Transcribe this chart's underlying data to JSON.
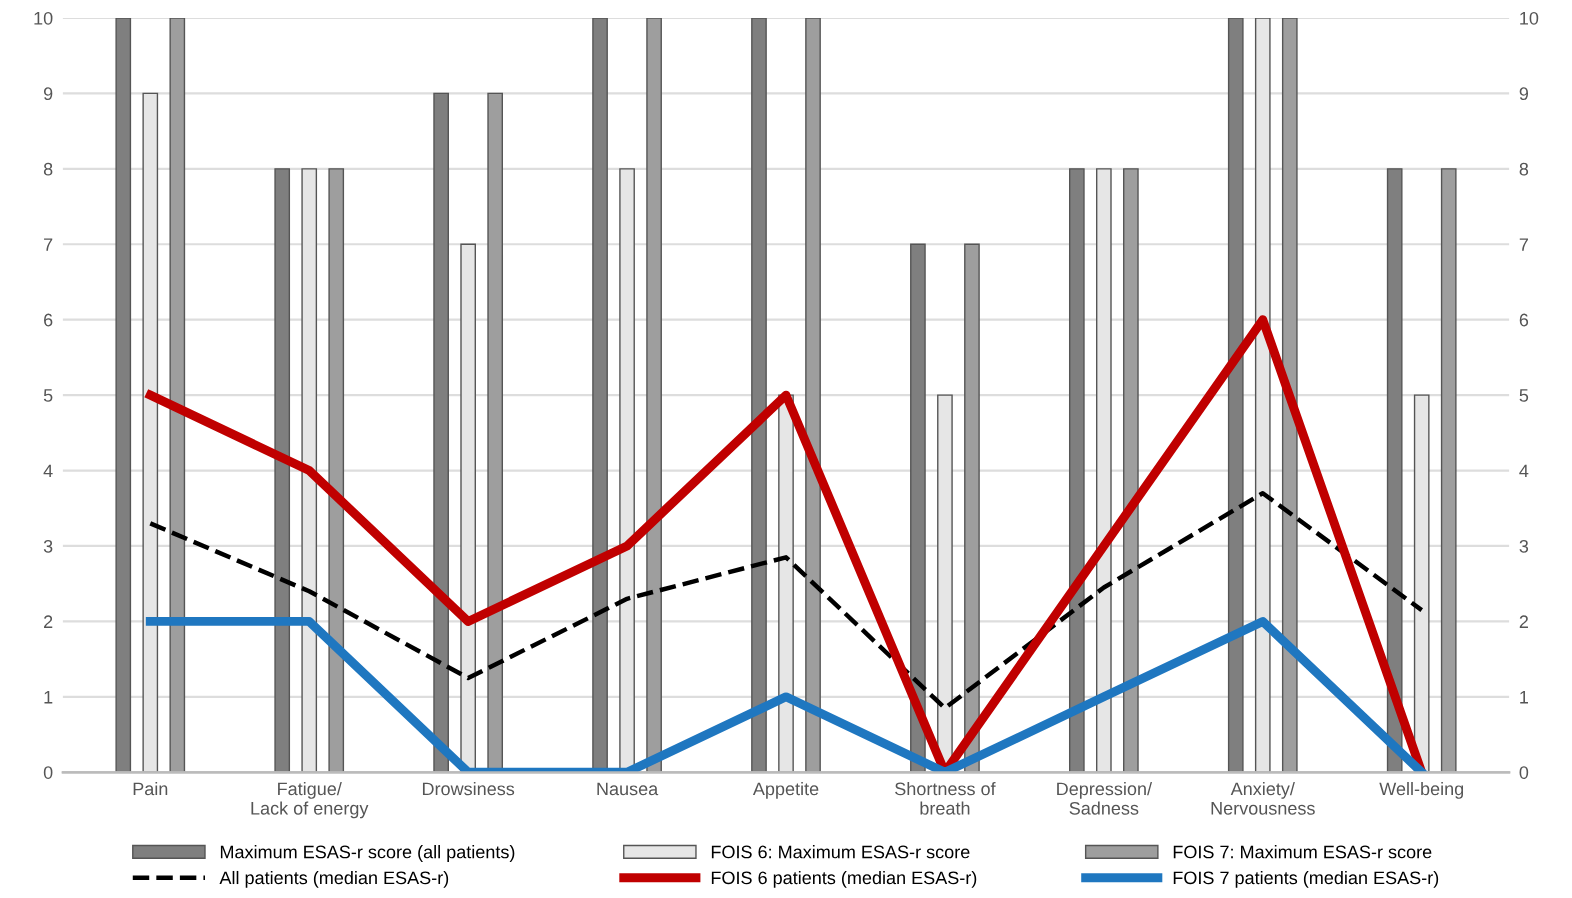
{
  "chart_data": {
    "type": "bar",
    "categories": [
      "Pain",
      "Fatigue/\nLack of energy",
      "Drowsiness",
      "Nausea",
      "Appetite",
      "Shortness of\nbreath",
      "Depression/\nSadness",
      "Anxiety/\nNervousness",
      "Well-being"
    ],
    "series": [
      {
        "name": "Maximum ESAS-r score (all patients)",
        "color": "#7f7f7f",
        "values": [
          10,
          8,
          9,
          10,
          10,
          7,
          8,
          10,
          8
        ]
      },
      {
        "name": "FOIS 6: Maximum ESAS-r score",
        "color": "#e6e6e6",
        "values": [
          9,
          8,
          7,
          8,
          5,
          5,
          8,
          10,
          5
        ]
      },
      {
        "name": "FOIS 7: Maximum ESAS-r score",
        "color": "#9e9e9e",
        "values": [
          10,
          8,
          9,
          10,
          10,
          7,
          8,
          10,
          8
        ]
      },
      {
        "name": "All patients (median ESAS-r)",
        "type": "line",
        "color": "#000000",
        "line_style": "dashed",
        "values": [
          3.3,
          2.4,
          1.25,
          2.3,
          2.85,
          0.85,
          2.45,
          3.7,
          2.15
        ]
      },
      {
        "name": "FOIS 6 patients (median ESAS-r)",
        "type": "line",
        "color": "#c00000",
        "line_style": "solid",
        "values": [
          5,
          4,
          2,
          3,
          5,
          0,
          3,
          6,
          0
        ]
      },
      {
        "name": "FOIS 7 patients (median ESAS-r)",
        "type": "line",
        "color": "#1f77c0",
        "line_style": "solid",
        "values": [
          2,
          2,
          0,
          0,
          1,
          0,
          1,
          2,
          0
        ]
      }
    ],
    "ylim": [
      0,
      10
    ],
    "yticks": [
      0,
      1,
      2,
      3,
      4,
      5,
      6,
      7,
      8,
      9,
      10
    ],
    "y2lim": [
      0,
      10
    ],
    "y2ticks": [
      0,
      1,
      2,
      3,
      4,
      5,
      6,
      7,
      8,
      9,
      10
    ],
    "grid": "y",
    "legend": "bottom"
  }
}
